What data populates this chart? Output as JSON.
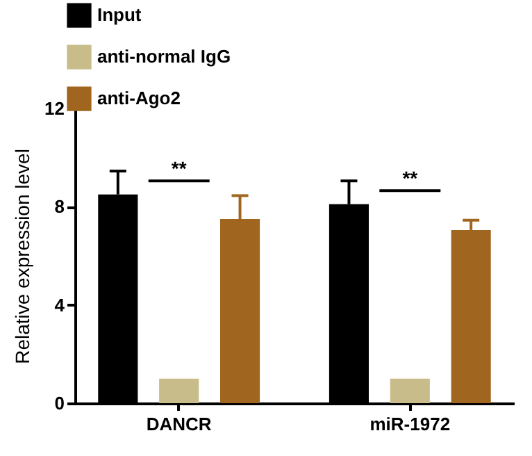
{
  "chart_data": {
    "type": "bar",
    "ylabel": "Relative expression level",
    "categories": [
      "DANCR",
      "miR-1972"
    ],
    "series": [
      {
        "name": "Input",
        "color": "#000000",
        "values": [
          8.5,
          8.1
        ],
        "errors": [
          [
            8.5,
            9.45
          ],
          [
            8.1,
            9.05
          ]
        ]
      },
      {
        "name": "anti-normal IgG",
        "color": "#c8bd8a",
        "values": [
          1.0,
          1.0
        ]
      },
      {
        "name": "anti-Ago2",
        "color": "#a0651f",
        "values": [
          7.5,
          7.05
        ],
        "errors": [
          [
            7.5,
            8.45
          ],
          [
            7.05,
            7.45
          ]
        ]
      }
    ],
    "ylim": [
      0,
      12
    ],
    "yticks": [
      0,
      4,
      8,
      12
    ],
    "grid": false,
    "legend": "top left",
    "annotations": [
      "**",
      "**"
    ]
  }
}
